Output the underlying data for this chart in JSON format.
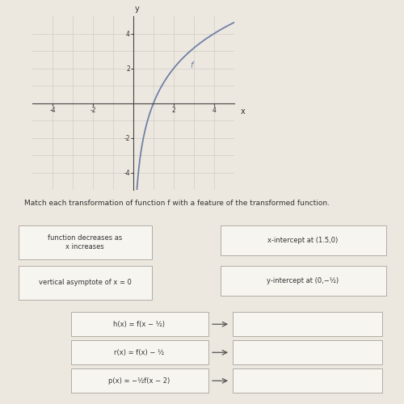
{
  "background_color": "#ede8df",
  "graph": {
    "xlim": [
      -5,
      5
    ],
    "ylim": [
      -5,
      5
    ],
    "xtick_vals": [
      -4,
      -2,
      2,
      4
    ],
    "ytick_vals": [
      -4,
      -2,
      2,
      4
    ],
    "curve_color": "#7080a8",
    "curve_label": "f",
    "grid_color": "#d0ccc4",
    "axis_color": "#444444"
  },
  "instruction": "Match each transformation of function f with a feature of the transformed function.",
  "left_boxes": [
    "function decreases as\nx increases",
    "vertical asymptote of x = 0"
  ],
  "right_boxes": [
    "x-intercept at (1.5,0)",
    "y-intercept at (0,−½)"
  ],
  "transform_boxes": [
    "h(x) = f(x − ½)",
    "r(x) = f(x) − ½",
    "p(x) = −½f(x − 2)"
  ],
  "box_color": "#f7f5f0",
  "box_edge_color": "#b0aca4",
  "text_color": "#333333",
  "arrow_color": "#555555"
}
